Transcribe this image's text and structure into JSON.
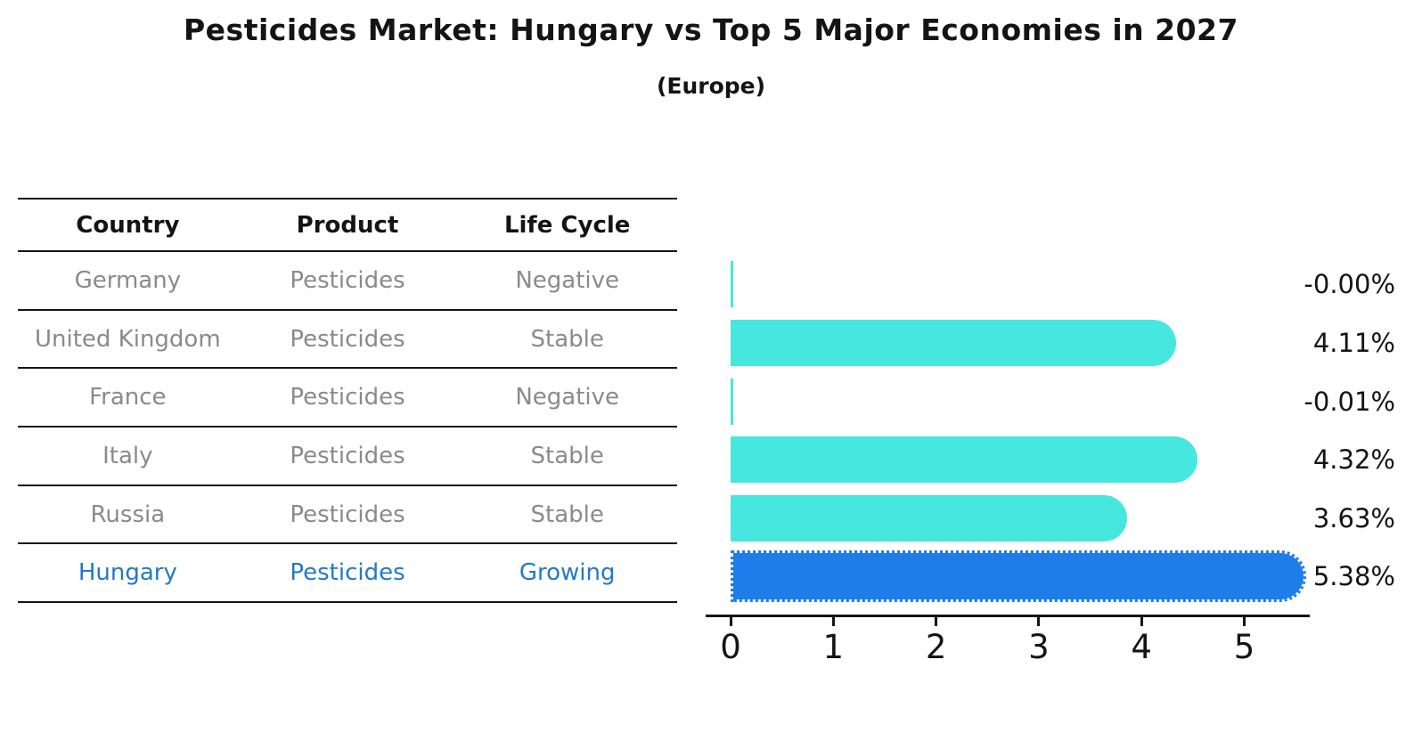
{
  "title": "Pesticides Market: Hungary vs Top 5 Major Economies in 2027",
  "subtitle": "(Europe)",
  "table": {
    "headers": [
      "Country",
      "Product",
      "Life Cycle"
    ],
    "rows": [
      {
        "country": "Germany",
        "product": "Pesticides",
        "life_cycle": "Negative"
      },
      {
        "country": "United Kingdom",
        "product": "Pesticides",
        "life_cycle": "Stable"
      },
      {
        "country": "France",
        "product": "Pesticides",
        "life_cycle": "Negative"
      },
      {
        "country": "Italy",
        "product": "Pesticides",
        "life_cycle": "Stable"
      },
      {
        "country": "Russia",
        "product": "Pesticides",
        "life_cycle": "Stable"
      },
      {
        "country": "Hungary",
        "product": "Pesticides",
        "life_cycle": "Growing"
      }
    ],
    "highlight_row": "Hungary"
  },
  "chart_data": {
    "type": "bar",
    "orientation": "horizontal",
    "categories": [
      "Germany",
      "United Kingdom",
      "France",
      "Italy",
      "Russia",
      "Hungary"
    ],
    "values": [
      -0.0,
      4.11,
      -0.01,
      4.32,
      3.63,
      5.38
    ],
    "value_labels": [
      "-0.00%",
      "4.11%",
      "-0.01%",
      "4.32%",
      "3.63%",
      "5.38%"
    ],
    "xticks": [
      "0",
      "1",
      "2",
      "3",
      "4",
      "5"
    ],
    "xlim": [
      -0.28,
      5.65
    ],
    "unit": "percent CAGR",
    "highlight_index": 5,
    "bar_color": "#46E7DE",
    "highlight_color": "#1E7DE8",
    "grid": false,
    "legend": false
  },
  "colors": {
    "bar": "#46E7DE",
    "highlight_bar": "#1E7DE8",
    "table_text": "#8a8a8a",
    "highlight_text": "#2379c8",
    "heading_text": "#141414",
    "background": "#ffffff"
  }
}
